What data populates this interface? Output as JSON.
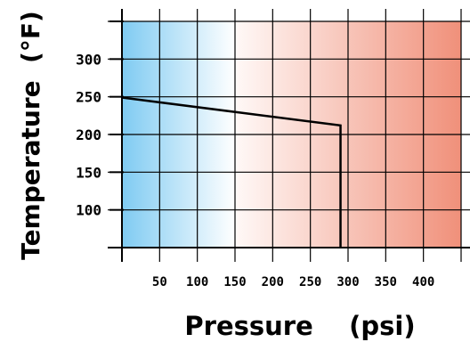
{
  "chart_data": {
    "type": "line",
    "xlabel": "Pressure    (psi)",
    "ylabel": "Temperature  (°F)",
    "xlim": [
      0,
      450
    ],
    "ylim": [
      50,
      350
    ],
    "x_ticks": [
      50,
      100,
      150,
      200,
      250,
      300,
      350,
      400
    ],
    "y_ticks": [
      100,
      150,
      200,
      250,
      300
    ],
    "series": [
      {
        "points": [
          {
            "x": 0,
            "y": 249
          },
          {
            "x": 290,
            "y": 212
          },
          {
            "x": 290,
            "y": 50
          }
        ]
      }
    ],
    "background_gradient": {
      "cold_color": "#7fcbf2",
      "neutral_color": "#ffffff",
      "hot_color": "#f0907a",
      "neutral_at_x": 150
    },
    "grid": true
  }
}
